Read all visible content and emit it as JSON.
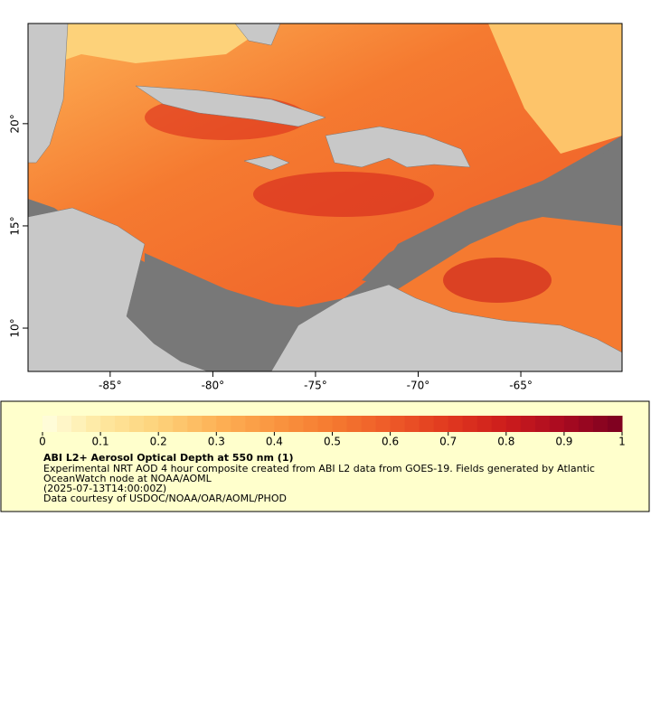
{
  "map": {
    "xlim": [
      -89,
      -60.07
    ],
    "ylim": [
      7.88,
      24.9
    ],
    "xticks": [
      {
        "value": -85,
        "label": "-85°"
      },
      {
        "value": -80,
        "label": "-80°"
      },
      {
        "value": -75,
        "label": "-75°"
      },
      {
        "value": -70,
        "label": "-70°"
      },
      {
        "value": -65,
        "label": "-65°"
      }
    ],
    "yticks": [
      {
        "value": 10,
        "label": "10°"
      },
      {
        "value": 15,
        "label": "15°"
      },
      {
        "value": 20,
        "label": "20°"
      }
    ]
  },
  "legend": {
    "title": "ABI L2+ Aerosol Optical Depth at 550 nm (1)",
    "description": "Experimental NRT AOD 4 hour composite created from ABI L2 data from GOES-19. Fields generated by Atlantic OceanWatch node at NOAA/AOML",
    "time": "(2025-07-13T14:00:00Z)",
    "credit": "Data courtesy of USDOC/NOAA/OAR/AOML/PHOD",
    "colorbar": {
      "range": [
        0,
        1
      ],
      "ticks": [
        0,
        0.1,
        0.2,
        0.3,
        0.4,
        0.5,
        0.6,
        0.7,
        0.8,
        0.9,
        1
      ],
      "colors": [
        "#ffffe0",
        "#fee8a0",
        "#fdd27a",
        "#fdb256",
        "#f99540",
        "#f57a30",
        "#ee5a28",
        "#e0391f",
        "#cc1c1c",
        "#a80a20",
        "#7a0020"
      ]
    }
  }
}
